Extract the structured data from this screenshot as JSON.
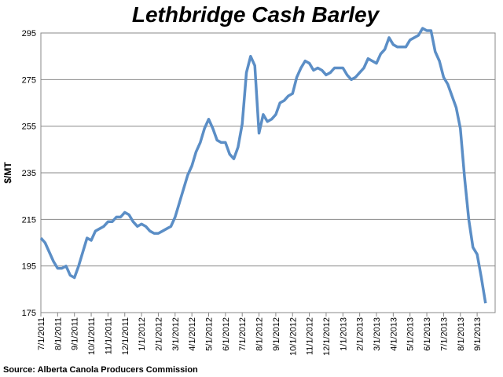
{
  "chart_data": {
    "type": "line",
    "title": "Lethbridge Cash Barley",
    "y_label": "$/MT",
    "source": "Source: Alberta Canola  Producers Commission",
    "categories": [
      "7/1/2011",
      null,
      null,
      null,
      "8/1/2011",
      null,
      null,
      null,
      "9/1/2011",
      null,
      null,
      null,
      "10/1/2011",
      null,
      null,
      null,
      "11/1/2011",
      null,
      null,
      null,
      "12/1/2011",
      null,
      null,
      null,
      "1/1/2012",
      null,
      null,
      null,
      "2/1/2012",
      null,
      null,
      null,
      "3/1/2012",
      null,
      null,
      null,
      "4/1/2012",
      null,
      null,
      null,
      "5/1/2012",
      null,
      null,
      null,
      "6/1/2012",
      null,
      null,
      null,
      "7/1/2012",
      null,
      null,
      null,
      "8/1/2012",
      null,
      null,
      null,
      "9/1/2012",
      null,
      null,
      null,
      "10/1/2012",
      null,
      null,
      null,
      "11/1/2012",
      null,
      null,
      null,
      "12/1/2012",
      null,
      null,
      null,
      "1/1/2013",
      null,
      null,
      null,
      "2/1/2013",
      null,
      null,
      null,
      "3/1/2013",
      null,
      null,
      null,
      "4/1/2013",
      null,
      null,
      null,
      "5/1/2013",
      null,
      null,
      null,
      "6/1/2013",
      null,
      null,
      null,
      "7/1/2013",
      null,
      null,
      null,
      "8/1/2013",
      null,
      null,
      null,
      "9/1/2013",
      null,
      null
    ],
    "values": [
      207,
      205,
      201,
      197,
      194,
      194,
      195,
      191,
      190,
      195,
      201,
      207,
      206,
      210,
      211,
      212,
      214,
      214,
      216,
      216,
      218,
      217,
      214,
      212,
      213,
      212,
      210,
      209,
      209,
      210,
      211,
      212,
      216,
      222,
      228,
      234,
      238,
      244,
      248,
      254,
      258,
      254,
      249,
      248,
      248,
      243,
      241,
      246,
      256,
      278,
      285,
      281,
      252,
      260,
      257,
      258,
      260,
      265,
      266,
      268,
      269,
      276,
      280,
      283,
      282,
      279,
      280,
      279,
      277,
      278,
      280,
      280,
      280,
      277,
      275,
      276,
      278,
      280,
      284,
      283,
      282,
      286,
      288,
      293,
      290,
      289,
      289,
      289,
      292,
      293,
      294,
      297,
      296,
      296,
      287,
      283,
      276,
      273,
      268,
      263,
      254,
      233,
      215,
      203,
      200,
      190,
      179
    ],
    "color": "#5b8ec6",
    "ylim": [
      175,
      295
    ],
    "yticks": [
      175,
      195,
      215,
      235,
      255,
      275,
      295
    ],
    "grid": true
  }
}
